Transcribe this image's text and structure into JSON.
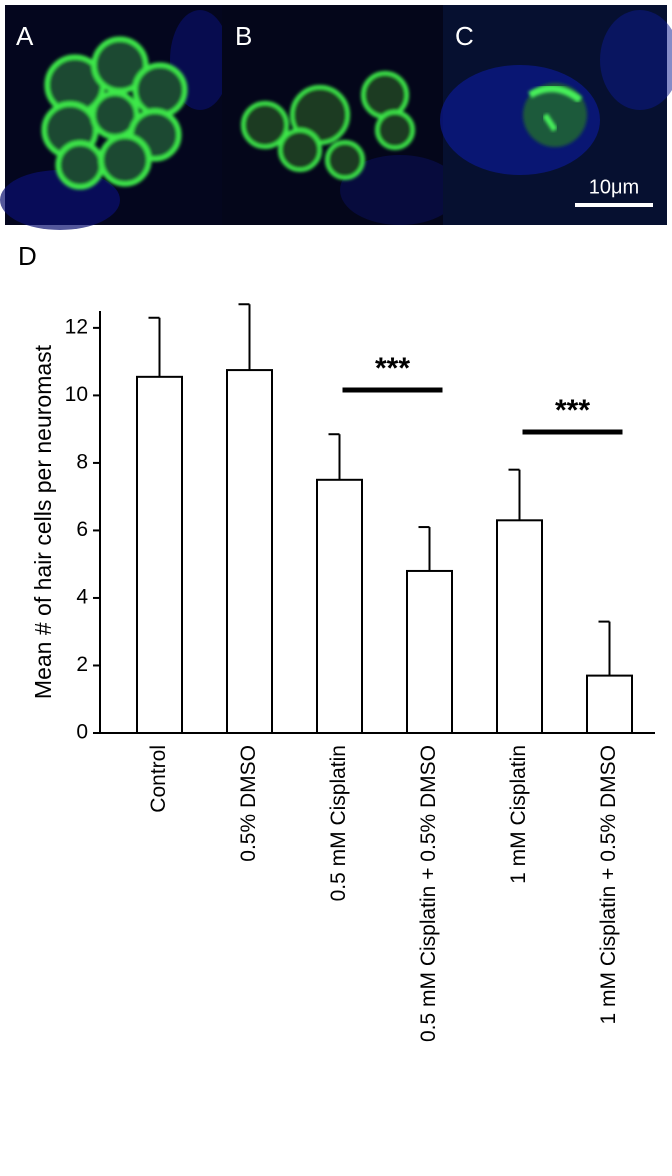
{
  "panels": {
    "labels": [
      "A",
      "B",
      "C"
    ],
    "scale_bar": "10μm"
  },
  "chart_data": {
    "type": "bar",
    "panel_label": "D",
    "ylabel": "Mean # of hair cells per neuromast",
    "categories": [
      "Control",
      "0.5% DMSO",
      "0.5 mM Cisplatin",
      "0.5 mM Cisplatin + 0.5% DMSO",
      "1 mM Cisplatin",
      "1 mM Cisplatin + 0.5% DMSO"
    ],
    "values": [
      10.55,
      10.75,
      7.5,
      4.8,
      6.3,
      1.7
    ],
    "errors": [
      1.75,
      1.95,
      1.35,
      1.3,
      1.5,
      1.6
    ],
    "color": "#ffffff",
    "ylim": [
      0,
      12.5
    ],
    "yticks": [
      0,
      2,
      4,
      6,
      8,
      10,
      12
    ],
    "annotations": [
      "***",
      "***"
    ]
  }
}
